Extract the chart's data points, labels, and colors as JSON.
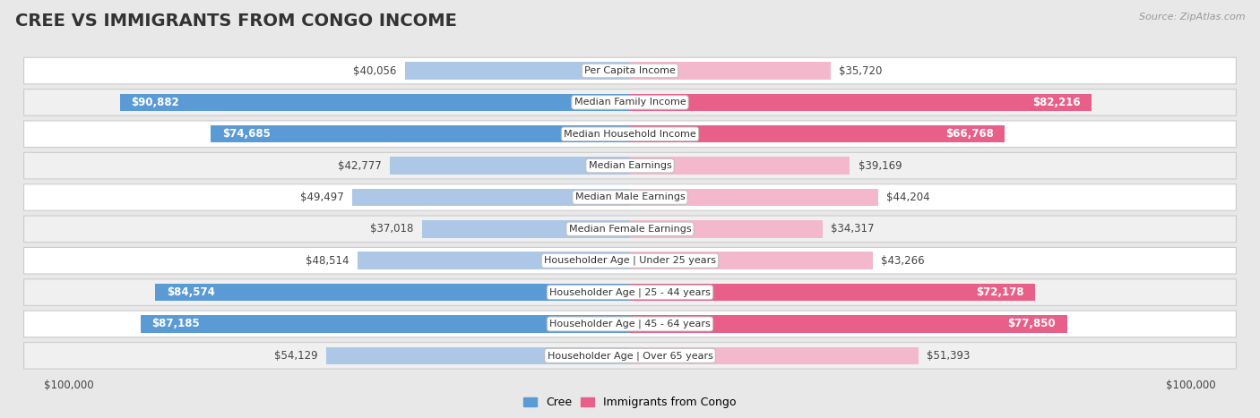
{
  "title": "CREE VS IMMIGRANTS FROM CONGO INCOME",
  "source": "Source: ZipAtlas.com",
  "categories": [
    "Per Capita Income",
    "Median Family Income",
    "Median Household Income",
    "Median Earnings",
    "Median Male Earnings",
    "Median Female Earnings",
    "Householder Age | Under 25 years",
    "Householder Age | 25 - 44 years",
    "Householder Age | 45 - 64 years",
    "Householder Age | Over 65 years"
  ],
  "cree_values": [
    40056,
    90882,
    74685,
    42777,
    49497,
    37018,
    48514,
    84574,
    87185,
    54129
  ],
  "congo_values": [
    35720,
    82216,
    66768,
    39169,
    44204,
    34317,
    43266,
    72178,
    77850,
    51393
  ],
  "cree_labels": [
    "$40,056",
    "$90,882",
    "$74,685",
    "$42,777",
    "$49,497",
    "$37,018",
    "$48,514",
    "$84,574",
    "$87,185",
    "$54,129"
  ],
  "congo_labels": [
    "$35,720",
    "$82,216",
    "$66,768",
    "$39,169",
    "$44,204",
    "$34,317",
    "$43,266",
    "$72,178",
    "$77,850",
    "$51,393"
  ],
  "max_value": 100000,
  "cree_color_light": "#adc8e6",
  "cree_color_dark": "#5b9bd5",
  "congo_color_light": "#f4b8cc",
  "congo_color_dark": "#e8608a",
  "bg_color": "#e8e8e8",
  "row_bg": "#ffffff",
  "row_alt_bg": "#f0f0f0",
  "large_threshold": 60000,
  "title_fontsize": 14,
  "bar_label_fontsize": 8.5,
  "cat_label_fontsize": 8,
  "legend_fontsize": 9
}
